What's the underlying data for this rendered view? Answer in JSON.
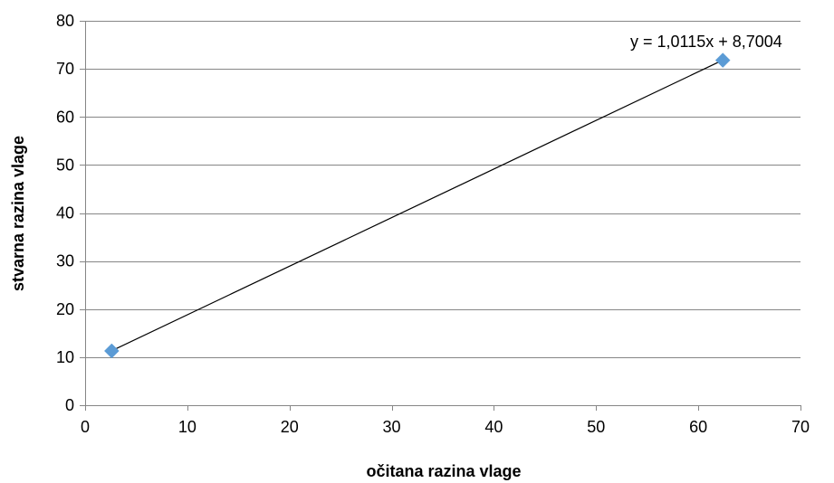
{
  "chart_data": {
    "type": "scatter",
    "title": "",
    "xlabel": "očitana razina vlage",
    "ylabel": "stvarna razina vlage",
    "xlim": [
      0,
      70
    ],
    "ylim": [
      0,
      80
    ],
    "x_ticks": [
      0,
      10,
      20,
      30,
      40,
      50,
      60,
      70
    ],
    "y_ticks": [
      0,
      10,
      20,
      30,
      40,
      50,
      60,
      70,
      80
    ],
    "grid": "horizontal",
    "series": [
      {
        "points": [
          {
            "x": 2.6,
            "y": 11.3
          },
          {
            "x": 62.4,
            "y": 71.8
          }
        ],
        "marker": "diamond",
        "color": "#5b9bd5"
      }
    ],
    "trendline": {
      "type": "linear",
      "slope": 1.0115,
      "intercept": 8.7004,
      "from_x": 2.6,
      "to_x": 62.4,
      "color": "#000000",
      "equation_label": "y = 1,0115x + 8,7004"
    },
    "colors": {
      "axis": "#868686",
      "gridline": "#868686",
      "marker": "#5b9bd5"
    }
  }
}
